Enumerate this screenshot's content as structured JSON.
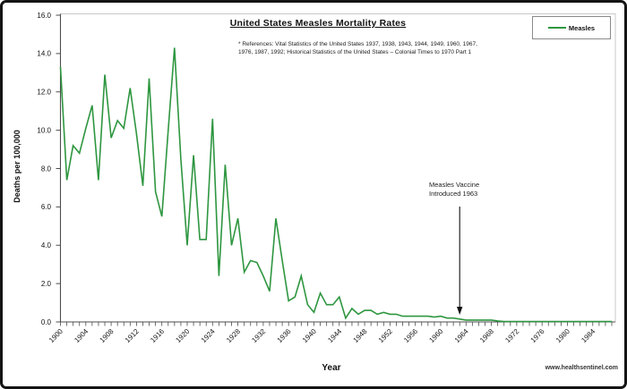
{
  "watermark": "www.healthsentinel.com",
  "chart_data": {
    "type": "line",
    "title": "United States Measles Mortality Rates",
    "references_line1": "* References: Vital Statistics of the United States 1937, 1938, 1943, 1944, 1949, 1960, 1967,",
    "references_line2": "1976, 1987, 1992; Historical Statistics of the United States – Colonial Times to 1970 Part 1",
    "xlabel": "Year",
    "ylabel": "Deaths per 100,000",
    "grid": "off",
    "legend": {
      "position": "top-right",
      "series_label": "Measles"
    },
    "line_color": "#2e9640",
    "axis_color": "#4d4d4d",
    "ylim": [
      0,
      16
    ],
    "ytick_step": 2,
    "ytick_labels": [
      "16.0",
      "14.0",
      "12.0",
      "10.0",
      "8.0",
      "6.0",
      "4.0",
      "2.0",
      "0.0"
    ],
    "xtick_label_years": [
      1900,
      1904,
      1908,
      1912,
      1916,
      1920,
      1924,
      1928,
      1932,
      1936,
      1940,
      1944,
      1948,
      1952,
      1956,
      1960,
      1964,
      1968,
      1972,
      1976,
      1980,
      1984
    ],
    "annotation": {
      "line1": "Measles Vaccine",
      "line2": "Introduced 1963",
      "year": 1963
    },
    "series": [
      {
        "name": "Measles",
        "x_years": [
          1900,
          1901,
          1902,
          1903,
          1904,
          1905,
          1906,
          1907,
          1908,
          1909,
          1910,
          1911,
          1912,
          1913,
          1914,
          1915,
          1916,
          1917,
          1918,
          1919,
          1920,
          1921,
          1922,
          1923,
          1924,
          1925,
          1926,
          1927,
          1928,
          1929,
          1930,
          1931,
          1932,
          1933,
          1934,
          1935,
          1936,
          1937,
          1938,
          1939,
          1940,
          1941,
          1942,
          1943,
          1944,
          1945,
          1946,
          1947,
          1948,
          1949,
          1950,
          1951,
          1952,
          1953,
          1954,
          1955,
          1956,
          1957,
          1958,
          1959,
          1960,
          1961,
          1962,
          1963,
          1964,
          1965,
          1966,
          1967,
          1968,
          1969,
          1970,
          1971,
          1972,
          1973,
          1974,
          1975,
          1976,
          1977,
          1978,
          1979,
          1980,
          1981,
          1982,
          1983,
          1984,
          1985,
          1986,
          1987
        ],
        "values": [
          13.3,
          7.4,
          9.2,
          8.8,
          10.1,
          11.3,
          7.4,
          12.9,
          9.6,
          10.5,
          10.1,
          12.2,
          9.8,
          7.1,
          12.7,
          6.8,
          5.5,
          10.0,
          14.3,
          8.5,
          4.0,
          8.7,
          4.3,
          4.3,
          10.6,
          2.4,
          8.2,
          4.0,
          5.4,
          2.6,
          3.2,
          3.1,
          2.4,
          1.6,
          5.4,
          3.2,
          1.1,
          1.3,
          2.4,
          0.9,
          0.5,
          1.5,
          0.9,
          0.9,
          1.3,
          0.2,
          0.7,
          0.4,
          0.6,
          0.6,
          0.4,
          0.5,
          0.4,
          0.4,
          0.3,
          0.3,
          0.3,
          0.3,
          0.3,
          0.25,
          0.3,
          0.2,
          0.2,
          0.15,
          0.1,
          0.1,
          0.1,
          0.1,
          0.1,
          0.05,
          0.02,
          0.02,
          0.02,
          0.02,
          0.02,
          0.02,
          0.02,
          0.02,
          0.02,
          0.02,
          0.02,
          0.02,
          0.02,
          0.02,
          0.02,
          0.02,
          0.02,
          0.02
        ]
      }
    ]
  }
}
